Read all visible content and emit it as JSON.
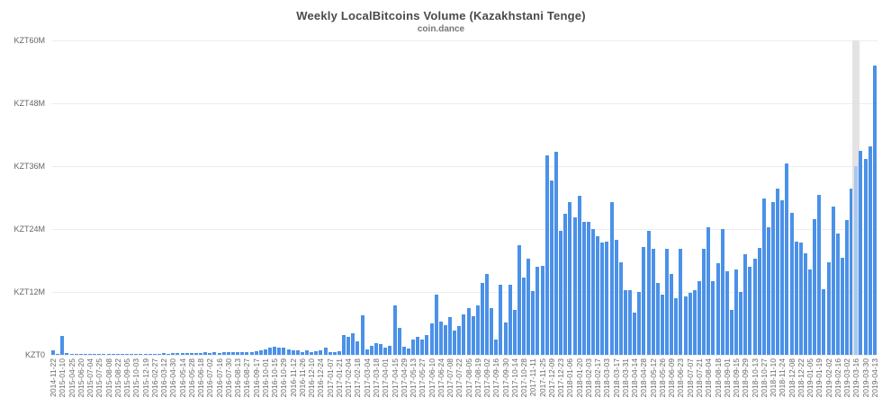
{
  "chart_data": {
    "type": "bar",
    "title": "Weekly LocalBitcoins Volume (Kazakhstani Tenge)",
    "subtitle": "coin.dance",
    "ylabel_ticks": [
      "KZT0",
      "KZT12M",
      "KZT24M",
      "KZT36M",
      "KZT48M",
      "KZT60M"
    ],
    "y_max": 60,
    "y_unit_suffix": "M",
    "grid": true,
    "legend": "none",
    "label_every_n_bars": 2,
    "x_labels": [
      "2014-11-22",
      "2015-01-10",
      "2015-04-25",
      "2015-06-20",
      "2015-07-04",
      "2015-07-25",
      "2015-08-08",
      "2015-08-22",
      "2015-09-05",
      "2015-10-03",
      "2015-12-19",
      "2016-02-27",
      "2016-03-12",
      "2016-04-30",
      "2016-05-14",
      "2016-05-28",
      "2016-06-18",
      "2016-07-02",
      "2016-07-16",
      "2016-07-30",
      "2016-08-13",
      "2016-08-27",
      "2016-09-17",
      "2016-10-01",
      "2016-10-15",
      "2016-10-29",
      "2016-11-12",
      "2016-11-26",
      "2016-12-10",
      "2016-12-24",
      "2017-01-07",
      "2017-01-21",
      "2017-02-04",
      "2017-02-18",
      "2017-03-04",
      "2017-03-18",
      "2017-04-01",
      "2017-04-15",
      "2017-04-29",
      "2017-05-13",
      "2017-05-27",
      "2017-06-10",
      "2017-06-24",
      "2017-07-08",
      "2017-07-22",
      "2017-08-05",
      "2017-08-19",
      "2017-09-02",
      "2017-09-16",
      "2017-09-30",
      "2017-10-14",
      "2017-10-28",
      "2017-11-11",
      "2017-11-25",
      "2017-12-09",
      "2017-12-23",
      "2018-01-06",
      "2018-01-20",
      "2018-02-03",
      "2018-02-17",
      "2018-03-03",
      "2018-03-17",
      "2018-03-31",
      "2018-04-14",
      "2018-04-28",
      "2018-05-12",
      "2018-05-26",
      "2018-06-09",
      "2018-06-23",
      "2018-07-07",
      "2018-07-21",
      "2018-08-04",
      "2018-08-18",
      "2018-09-01",
      "2018-09-15",
      "2018-09-29",
      "2018-10-13",
      "2018-10-27",
      "2018-11-10",
      "2018-11-24",
      "2018-12-08",
      "2018-12-22",
      "2019-01-05",
      "2019-01-19",
      "2019-02-02",
      "2019-02-16",
      "2019-03-02",
      "2019-03-16",
      "2019-03-30",
      "2019-04-13"
    ],
    "values": [
      0.8,
      0.05,
      3.6,
      0.3,
      0.15,
      0.1,
      0.15,
      0.1,
      0.12,
      0.1,
      0.15,
      0.1,
      0.12,
      0.15,
      0.1,
      0.12,
      0.1,
      0.15,
      0.12,
      0.1,
      0.15,
      0.2,
      0.25,
      0.2,
      0.3,
      0.25,
      0.3,
      0.35,
      0.3,
      0.35,
      0.3,
      0.4,
      0.35,
      0.45,
      0.4,
      0.45,
      0.4,
      0.5,
      0.45,
      0.5,
      0.55,
      0.5,
      0.6,
      0.55,
      0.7,
      0.8,
      1.0,
      1.3,
      1.5,
      1.3,
      1.4,
      1.1,
      0.8,
      0.9,
      0.6,
      0.8,
      0.5,
      0.7,
      0.9,
      1.3,
      0.6,
      0.6,
      0.7,
      3.7,
      3.4,
      4.2,
      2.6,
      7.6,
      1.0,
      1.7,
      2.3,
      2.1,
      1.4,
      1.7,
      9.4,
      5.1,
      1.5,
      1.2,
      2.9,
      3.4,
      2.9,
      3.7,
      6.0,
      11.5,
      6.3,
      5.7,
      7.2,
      4.7,
      5.5,
      7.7,
      8.9,
      7.4,
      9.4,
      13.8,
      15.4,
      9.0,
      2.9,
      13.4,
      6.1,
      13.3,
      8.6,
      20.9,
      14.7,
      18.3,
      12.1,
      16.8,
      16.9,
      38.0,
      33.3,
      38.7,
      23.7,
      26.9,
      29.1,
      26.2,
      30.3,
      25.4,
      25.3,
      24.0,
      22.6,
      21.4,
      21.6,
      29.1,
      22.0,
      17.7,
      12.3,
      12.4,
      8.1,
      12.0,
      20.6,
      23.7,
      20.2,
      13.7,
      11.5,
      20.2,
      15.4,
      10.8,
      20.2,
      11.1,
      11.8,
      12.3,
      14.0,
      20.2,
      24.3,
      14.0,
      17.5,
      24.0,
      16.0,
      8.6,
      16.3,
      12.0,
      19.2,
      16.8,
      18.3,
      20.4,
      29.8,
      24.3,
      29.1,
      31.8,
      29.5,
      36.5,
      27.1,
      21.6,
      21.4,
      19.4,
      16.3,
      25.9,
      30.5,
      12.5,
      17.7,
      28.3,
      23.1,
      18.5,
      25.7,
      31.7,
      36.0,
      38.9,
      37.4,
      39.8,
      55.2
    ],
    "highlight_bar_index": 174,
    "highlight_bar_label": "2019-03-16",
    "colors": {
      "bar": "#4b91e8",
      "highlight_bar": "#a9c9ef",
      "highlight_band": "#e3e3e3",
      "grid": "#ededed",
      "title_text": "#4a4a4a",
      "axis_text": "#666666"
    }
  }
}
